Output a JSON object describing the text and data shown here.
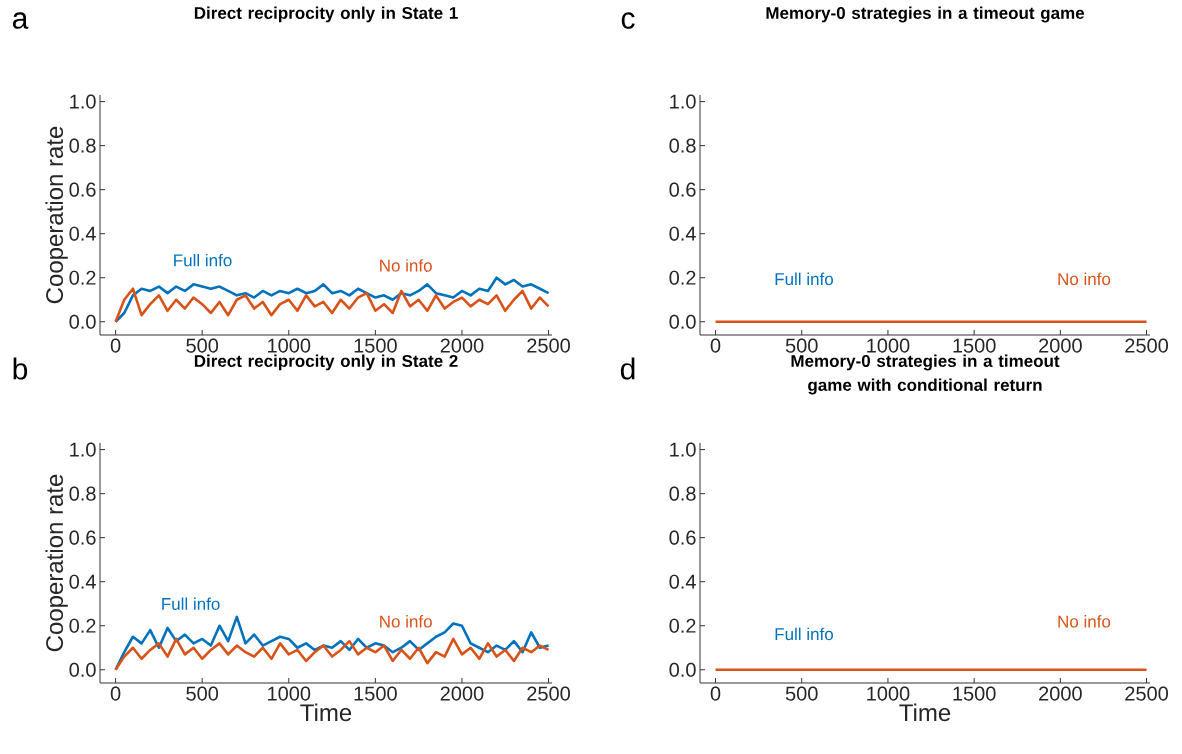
{
  "chart_data": [
    {
      "type": "line",
      "title": "Direct reciprocity only in State 1",
      "ylabel": "Cooperation rate",
      "annotations": [
        "a"
      ],
      "xlim": [
        -90,
        2520
      ],
      "ylim": [
        -0.06,
        1.03
      ],
      "xticks": [
        0,
        500,
        1000,
        1500,
        2000,
        2500
      ],
      "yticks": [
        {
          "value": 0,
          "label": "0.0"
        },
        {
          "value": 0.2,
          "label": "0.2"
        },
        {
          "value": 0.4,
          "label": "0.4"
        },
        {
          "value": 0.6,
          "label": "0.6"
        },
        {
          "value": 0.8,
          "label": "0.8"
        },
        {
          "value": 1,
          "label": "1.0"
        }
      ],
      "x": [
        0,
        50,
        100,
        150,
        200,
        250,
        300,
        350,
        400,
        450,
        500,
        550,
        600,
        650,
        700,
        750,
        800,
        850,
        900,
        950,
        1000,
        1050,
        1100,
        1150,
        1200,
        1250,
        1300,
        1350,
        1400,
        1450,
        1500,
        1550,
        1600,
        1650,
        1700,
        1750,
        1800,
        1850,
        1900,
        1950,
        2000,
        2050,
        2100,
        2150,
        2200,
        2250,
        2300,
        2350,
        2400,
        2450,
        2500
      ],
      "series": [
        {
          "name": "Full info",
          "color": "#0072bd",
          "values": [
            0,
            0.04,
            0.12,
            0.15,
            0.14,
            0.16,
            0.13,
            0.16,
            0.14,
            0.17,
            0.16,
            0.15,
            0.16,
            0.14,
            0.12,
            0.13,
            0.11,
            0.14,
            0.12,
            0.14,
            0.13,
            0.15,
            0.13,
            0.14,
            0.17,
            0.13,
            0.14,
            0.12,
            0.15,
            0.13,
            0.11,
            0.12,
            0.1,
            0.13,
            0.12,
            0.14,
            0.17,
            0.13,
            0.12,
            0.11,
            0.14,
            0.12,
            0.15,
            0.14,
            0.2,
            0.17,
            0.19,
            0.16,
            0.17,
            0.15,
            0.13
          ]
        },
        {
          "name": "No info",
          "color": "#d95319",
          "values": [
            0,
            0.1,
            0.15,
            0.03,
            0.08,
            0.12,
            0.05,
            0.1,
            0.06,
            0.11,
            0.08,
            0.04,
            0.09,
            0.03,
            0.1,
            0.12,
            0.06,
            0.09,
            0.03,
            0.08,
            0.1,
            0.05,
            0.12,
            0.07,
            0.09,
            0.04,
            0.1,
            0.06,
            0.11,
            0.13,
            0.05,
            0.08,
            0.04,
            0.14,
            0.07,
            0.1,
            0.05,
            0.12,
            0.06,
            0.09,
            0.11,
            0.07,
            0.1,
            0.08,
            0.12,
            0.05,
            0.1,
            0.14,
            0.06,
            0.11,
            0.07
          ]
        }
      ]
    },
    {
      "type": "line",
      "title": "Memory-0 strategies in a timeout game",
      "annotations": [
        "c"
      ],
      "xlim": [
        -90,
        2520
      ],
      "ylim": [
        -0.06,
        1.03
      ],
      "xticks": [
        0,
        500,
        1000,
        1500,
        2000,
        2500
      ],
      "yticks": [
        {
          "value": 0,
          "label": "0.0"
        },
        {
          "value": 0.2,
          "label": "0.2"
        },
        {
          "value": 0.4,
          "label": "0.4"
        },
        {
          "value": 0.6,
          "label": "0.6"
        },
        {
          "value": 0.8,
          "label": "0.8"
        },
        {
          "value": 1,
          "label": "1.0"
        }
      ],
      "x": [
        0,
        2500
      ],
      "series": [
        {
          "name": "Full info",
          "color": "#0072bd",
          "values": [
            null,
            null
          ]
        },
        {
          "name": "No info",
          "color": "#d95319",
          "values": [
            0,
            0
          ]
        }
      ]
    },
    {
      "type": "line",
      "title": "Direct reciprocity only in State 2",
      "xlabel": "Time",
      "ylabel": "Cooperation rate",
      "annotations": [
        "b"
      ],
      "xlim": [
        -90,
        2520
      ],
      "ylim": [
        -0.06,
        1.03
      ],
      "xticks": [
        0,
        500,
        1000,
        1500,
        2000,
        2500
      ],
      "yticks": [
        {
          "value": 0,
          "label": "0.0"
        },
        {
          "value": 0.2,
          "label": "0.2"
        },
        {
          "value": 0.4,
          "label": "0.4"
        },
        {
          "value": 0.6,
          "label": "0.6"
        },
        {
          "value": 0.8,
          "label": "0.8"
        },
        {
          "value": 1,
          "label": "1.0"
        }
      ],
      "x": [
        0,
        50,
        100,
        150,
        200,
        250,
        300,
        350,
        400,
        450,
        500,
        550,
        600,
        650,
        700,
        750,
        800,
        850,
        900,
        950,
        1000,
        1050,
        1100,
        1150,
        1200,
        1250,
        1300,
        1350,
        1400,
        1450,
        1500,
        1550,
        1600,
        1650,
        1700,
        1750,
        1800,
        1850,
        1900,
        1950,
        2000,
        2050,
        2100,
        2150,
        2200,
        2250,
        2300,
        2350,
        2400,
        2450,
        2500
      ],
      "series": [
        {
          "name": "Full info",
          "color": "#0072bd",
          "values": [
            0,
            0.08,
            0.15,
            0.12,
            0.18,
            0.1,
            0.19,
            0.13,
            0.16,
            0.12,
            0.14,
            0.11,
            0.2,
            0.13,
            0.24,
            0.12,
            0.16,
            0.11,
            0.13,
            0.15,
            0.14,
            0.1,
            0.12,
            0.09,
            0.11,
            0.1,
            0.13,
            0.09,
            0.14,
            0.1,
            0.12,
            0.11,
            0.08,
            0.1,
            0.13,
            0.09,
            0.12,
            0.15,
            0.17,
            0.21,
            0.2,
            0.12,
            0.1,
            0.08,
            0.11,
            0.09,
            0.13,
            0.08,
            0.17,
            0.1,
            0.11
          ]
        },
        {
          "name": "No info",
          "color": "#d95319",
          "values": [
            0,
            0.06,
            0.1,
            0.05,
            0.09,
            0.12,
            0.06,
            0.14,
            0.07,
            0.1,
            0.05,
            0.09,
            0.12,
            0.07,
            0.11,
            0.08,
            0.06,
            0.1,
            0.05,
            0.12,
            0.07,
            0.09,
            0.04,
            0.08,
            0.11,
            0.06,
            0.09,
            0.13,
            0.07,
            0.1,
            0.08,
            0.11,
            0.04,
            0.09,
            0.05,
            0.1,
            0.03,
            0.08,
            0.06,
            0.14,
            0.07,
            0.1,
            0.05,
            0.12,
            0.06,
            0.09,
            0.04,
            0.1,
            0.08,
            0.11,
            0.09
          ]
        }
      ]
    },
    {
      "type": "line",
      "title": "Memory-0 strategies in a timeout game with conditional return",
      "xlabel": "Time",
      "annotations": [
        "d"
      ],
      "xlim": [
        -90,
        2520
      ],
      "ylim": [
        -0.06,
        1.03
      ],
      "xticks": [
        0,
        500,
        1000,
        1500,
        2000,
        2500
      ],
      "yticks": [
        {
          "value": 0,
          "label": "0.0"
        },
        {
          "value": 0.2,
          "label": "0.2"
        },
        {
          "value": 0.4,
          "label": "0.4"
        },
        {
          "value": 0.6,
          "label": "0.6"
        },
        {
          "value": 0.8,
          "label": "0.8"
        },
        {
          "value": 1,
          "label": "1.0"
        }
      ],
      "x": [
        0,
        2500
      ],
      "series": [
        {
          "name": "Full info",
          "color": "#0072bd",
          "values": [
            null,
            null
          ]
        },
        {
          "name": "No info",
          "color": "#d95319",
          "values": [
            0,
            0
          ]
        }
      ]
    }
  ]
}
